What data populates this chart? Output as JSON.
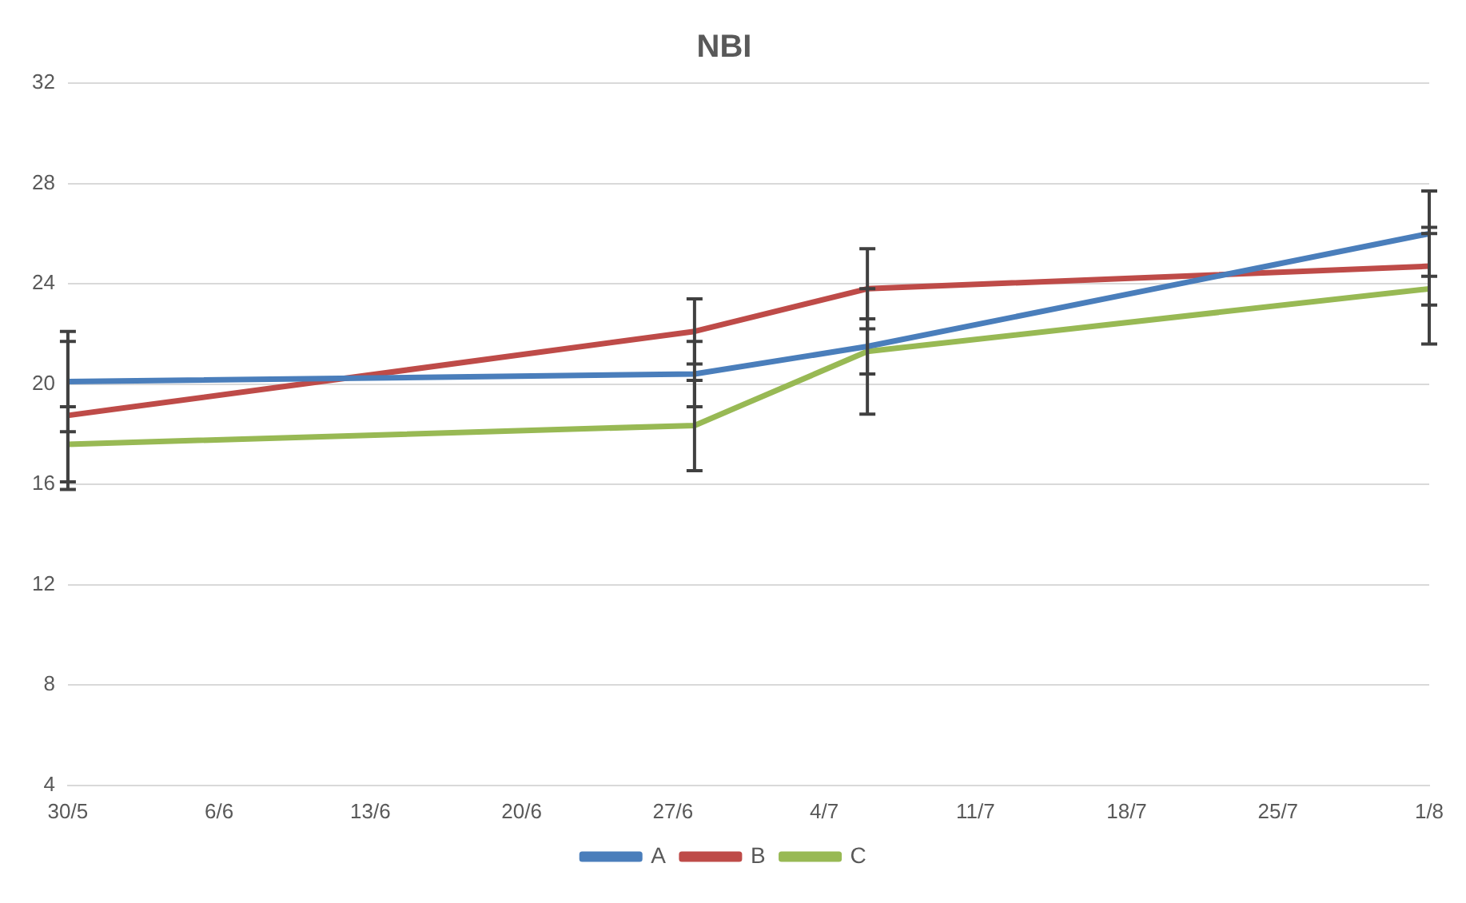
{
  "chart_data": {
    "type": "line",
    "title": "NBI",
    "x": [
      "--05-30",
      "--06-28",
      "--07-06",
      "--08-01"
    ],
    "series": [
      {
        "name": "A",
        "color": "#4a7ebb",
        "values": [
          20.1,
          20.4,
          21.5,
          26.0
        ],
        "errors": [
          2.0,
          1.3,
          1.1,
          1.7
        ]
      },
      {
        "name": "B",
        "color": "#be4b48",
        "values": [
          18.75,
          22.1,
          23.8,
          24.7
        ],
        "errors": [
          2.95,
          1.3,
          1.6,
          1.55
        ]
      },
      {
        "name": "C",
        "color": "#98b954",
        "values": [
          17.6,
          18.35,
          21.3,
          23.8
        ],
        "errors": [
          1.5,
          1.8,
          2.5,
          2.2
        ]
      }
    ],
    "xlim": [
      "--05-30",
      "--08-01"
    ],
    "xticks": [
      {
        "value": "--05-30",
        "label": "30/5"
      },
      {
        "value": "--06-06",
        "label": "6/6"
      },
      {
        "value": "--06-13",
        "label": "13/6"
      },
      {
        "value": "--06-20",
        "label": "20/6"
      },
      {
        "value": "--06-27",
        "label": "27/6"
      },
      {
        "value": "--07-04",
        "label": "4/7"
      },
      {
        "value": "--07-11",
        "label": "11/7"
      },
      {
        "value": "--07-18",
        "label": "18/7"
      },
      {
        "value": "--07-25",
        "label": "25/7"
      },
      {
        "value": "--08-01",
        "label": "1/8"
      }
    ],
    "ylim": [
      4,
      32
    ],
    "yticks": [
      4,
      8,
      12,
      16,
      20,
      24,
      28,
      32
    ],
    "grid": "y",
    "legend": "bottom",
    "marker": "none",
    "line_style": "solid"
  }
}
